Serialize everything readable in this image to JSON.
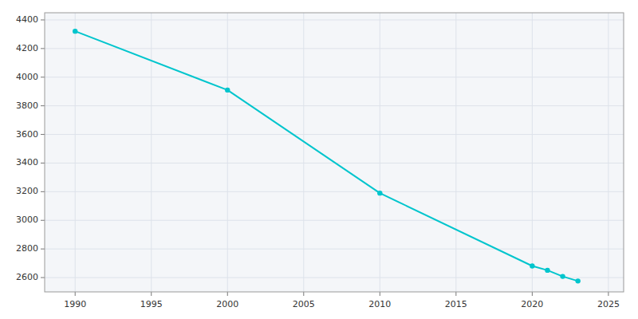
{
  "chart_data": {
    "type": "line",
    "x": [
      1990,
      2000,
      2010,
      2020,
      2021,
      2022,
      2023
    ],
    "values": [
      4321,
      3910,
      3190,
      2681,
      2651,
      2608,
      2576
    ],
    "color": "#00C5CD",
    "marker": "circle",
    "xlim": [
      1988,
      2026
    ],
    "ylim": [
      2500,
      4450
    ],
    "xticks": [
      1990,
      1995,
      2000,
      2005,
      2010,
      2015,
      2020,
      2025
    ],
    "yticks": [
      2600,
      2800,
      3000,
      3200,
      3400,
      3600,
      3800,
      4000,
      4200,
      4400
    ],
    "grid": true
  }
}
